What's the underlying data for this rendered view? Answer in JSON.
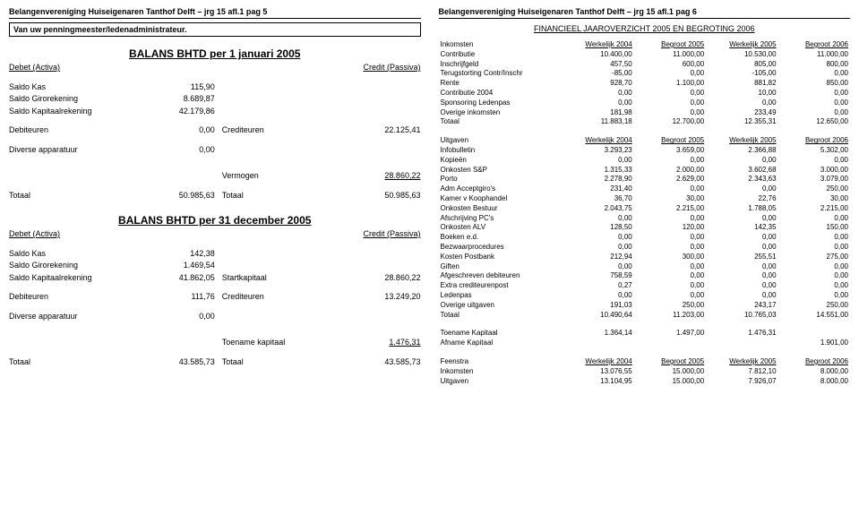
{
  "left": {
    "header": "Belangenvereniging Huiseigenaren Tanthof Delft – jrg 15 afl.1 pag 5",
    "subhead": "Van uw penningmeester/ledenadministrateur.",
    "balans1": {
      "title": "BALANS BHTD per 1 januari 2005",
      "debet": "Debet (Activa)",
      "credit": "Credit (Passiva)",
      "rows": [
        {
          "ll": "Saldo Kas",
          "lv": "115,90",
          "rl": "",
          "rv": ""
        },
        {
          "ll": "Saldo Girorekening",
          "lv": "8.689,87",
          "rl": "",
          "rv": ""
        },
        {
          "ll": "Saldo Kapitaalrekening",
          "lv": "42.179,86",
          "rl": "",
          "rv": ""
        },
        {
          "ll": "Debiteuren",
          "lv": "0,00",
          "rl": "Crediteuren",
          "rv": "22.125,41"
        },
        {
          "ll": "Diverse apparatuur",
          "lv": "0,00",
          "rl": "",
          "rv": ""
        },
        {
          "ll": "",
          "lv": "",
          "rl": "Vermogen",
          "rv": "28.860,22"
        },
        {
          "ll": "Totaal",
          "lv": "50.985,63",
          "rl": "Totaal",
          "rv": "50.985,63"
        }
      ]
    },
    "balans2": {
      "title": "BALANS BHTD per 31 december 2005",
      "debet": "Debet (Activa)",
      "credit": "Credit (Passiva)",
      "rows": [
        {
          "ll": "Saldo Kas",
          "lv": "142,38",
          "rl": "",
          "rv": ""
        },
        {
          "ll": "Saldo Girorekening",
          "lv": "1.469,54",
          "rl": "",
          "rv": ""
        },
        {
          "ll": "Saldo Kapitaalrekening",
          "lv": "41.862,05",
          "rl": "Startkapitaal",
          "rv": "28.860,22"
        },
        {
          "ll": "Debiteuren",
          "lv": "111,76",
          "rl": "Crediteuren",
          "rv": "13.249,20"
        },
        {
          "ll": "Diverse apparatuur",
          "lv": "0,00",
          "rl": "",
          "rv": ""
        },
        {
          "ll": "",
          "lv": "",
          "rl": "Toename kapitaal",
          "rv": "1.476,31"
        },
        {
          "ll": "Totaal",
          "lv": "43.585,73",
          "rl": "Totaal",
          "rv": "43.585,73"
        }
      ]
    }
  },
  "right": {
    "header": "Belangenvereniging Huiseigenaren Tanthof Delft – jrg 15 afl.1 pag 6",
    "fin_title": "FINANCIEEL JAAROVERZICHT 2005 EN BEGROTING 2006",
    "cols": [
      "Werkelijk 2004",
      "Begroot 2005",
      "Werkelijk 2005",
      "Begroot 2006"
    ],
    "inkomsten": {
      "title": "Inkomsten",
      "rows": [
        [
          "Contributie",
          "10.400,00",
          "11.000,00",
          "10.530,00",
          "11.000,00"
        ],
        [
          "Inschrijfgeld",
          "457,50",
          "600,00",
          "805,00",
          "800,00"
        ],
        [
          "Terugstorting Contr/Inschr",
          "-85,00",
          "0,00",
          "-105,00",
          "0,00"
        ],
        [
          "Rente",
          "928,70",
          "1.100,00",
          "881,82",
          "850,00"
        ],
        [
          "Contributie 2004",
          "0,00",
          "0,00",
          "10,00",
          "0,00"
        ],
        [
          "Sponsoring Ledenpas",
          "0,00",
          "0,00",
          "0,00",
          "0,00"
        ],
        [
          "Overige inkomsten",
          "181,98",
          "0,00",
          "233,49",
          "0,00"
        ],
        [
          "Totaal",
          "11.883,18",
          "12.700,00",
          "12.355,31",
          "12.650,00"
        ]
      ]
    },
    "uitgaven": {
      "title": "Uitgaven",
      "rows": [
        [
          "Infobulletin",
          "3.293,23",
          "3.659,00",
          "2.366,88",
          "5.302,00"
        ],
        [
          "Kopieën",
          "0,00",
          "0,00",
          "0,00",
          "0,00"
        ],
        [
          "Onkosten S&P",
          "1.315,33",
          "2.000,00",
          "3.602,68",
          "3.000,00"
        ],
        [
          "Porto",
          "2.278,90",
          "2.629,00",
          "2.343,63",
          "3.079,00"
        ],
        [
          "Adm Acceptgiro's",
          "231,40",
          "0,00",
          "0,00",
          "250,00"
        ],
        [
          "Kamer v Koophandel",
          "36,70",
          "30,00",
          "22,76",
          "30,00"
        ],
        [
          "Onkosten Bestuur",
          "2.043,75",
          "2.215,00",
          "1.788,05",
          "2.215,00"
        ],
        [
          "Afschrijving PC's",
          "0,00",
          "0,00",
          "0,00",
          "0,00"
        ],
        [
          "Onkosten ALV",
          "128,50",
          "120,00",
          "142,35",
          "150,00"
        ],
        [
          "Boeken e.d.",
          "0,00",
          "0,00",
          "0,00",
          "0,00"
        ],
        [
          "Bezwaarprocedures",
          "0,00",
          "0,00",
          "0,00",
          "0,00"
        ],
        [
          "Kosten Postbank",
          "212,94",
          "300,00",
          "255,51",
          "275,00"
        ],
        [
          "Giften",
          "0,00",
          "0,00",
          "0,00",
          "0,00"
        ],
        [
          "Afgeschreven debiteuren",
          "758,59",
          "0,00",
          "0,00",
          "0,00"
        ],
        [
          "Extra crediteurenpost",
          "0,27",
          "0,00",
          "0,00",
          "0,00"
        ],
        [
          "Ledenpas",
          "0,00",
          "0,00",
          "0,00",
          "0,00"
        ],
        [
          "Overige uitgaven",
          "191,03",
          "250,00",
          "243,17",
          "250,00"
        ],
        [
          "Totaal",
          "10.490,64",
          "11.203,00",
          "10.765,03",
          "14.551,00"
        ]
      ]
    },
    "kapitaal": {
      "rows": [
        [
          "Toename Kapitaal",
          "1.364,14",
          "1.497,00",
          "1.476,31",
          ""
        ],
        [
          "Afname Kapitaal",
          "",
          "",
          "",
          "1.901,00"
        ]
      ]
    },
    "feenstra": {
      "title": "Feenstra",
      "rows": [
        [
          "Inkomsten",
          "13.076,55",
          "15.000,00",
          "7.812,10",
          "8.000,00"
        ],
        [
          "Uitgaven",
          "13.104,95",
          "15.000,00",
          "7.926,07",
          "8.000,00"
        ]
      ]
    }
  }
}
